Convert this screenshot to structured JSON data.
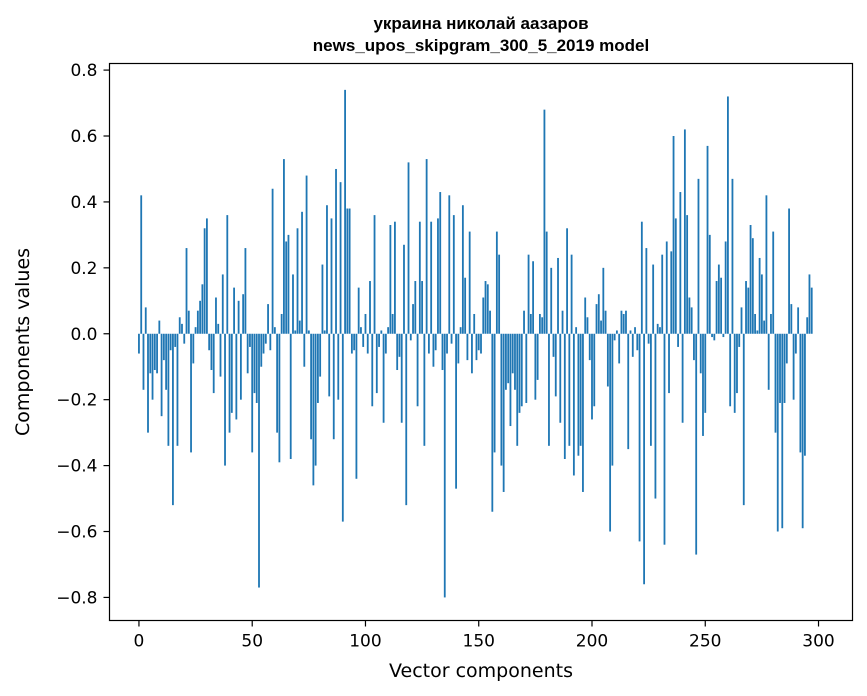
{
  "chart_data": {
    "type": "bar",
    "title_line1": "украина николай аазаров",
    "title_line2": "news_upos_skipgram_300_5_2019 model",
    "xlabel": "Vector components",
    "ylabel": "Components values",
    "xlim": [
      -13,
      315
    ],
    "ylim": [
      -0.87,
      0.82
    ],
    "xticks": [
      0,
      50,
      100,
      150,
      200,
      250,
      300
    ],
    "xtick_labels": [
      "0",
      "50",
      "100",
      "150",
      "200",
      "250",
      "300"
    ],
    "yticks": [
      -0.8,
      -0.6,
      -0.4,
      -0.2,
      0.0,
      0.2,
      0.4,
      0.6,
      0.8
    ],
    "ytick_labels": [
      "−0.8",
      "−0.6",
      "−0.4",
      "−0.2",
      "0.0",
      "0.2",
      "0.4",
      "0.6",
      "0.8"
    ],
    "bar_color": "#1f77b4",
    "values": [
      -0.06,
      0.42,
      -0.17,
      0.08,
      -0.3,
      -0.12,
      -0.2,
      -0.11,
      -0.12,
      0.04,
      -0.25,
      -0.08,
      -0.17,
      -0.34,
      -0.05,
      -0.52,
      -0.04,
      -0.34,
      0.05,
      0.03,
      -0.03,
      0.26,
      0.07,
      -0.36,
      -0.09,
      0.02,
      0.07,
      0.1,
      0.15,
      0.32,
      0.35,
      -0.05,
      -0.11,
      -0.18,
      0.11,
      0.03,
      -0.13,
      0.18,
      -0.4,
      0.36,
      -0.3,
      -0.24,
      0.14,
      -0.26,
      0.1,
      -0.2,
      0.12,
      0.26,
      -0.12,
      -0.04,
      -0.36,
      -0.18,
      -0.21,
      -0.77,
      -0.1,
      -0.06,
      -0.03,
      0.09,
      -0.05,
      0.44,
      0.02,
      -0.3,
      -0.39,
      0.06,
      0.53,
      0.28,
      0.3,
      -0.38,
      0.18,
      0.01,
      0.32,
      0.04,
      0.37,
      -0.1,
      0.48,
      0.01,
      -0.32,
      -0.46,
      -0.4,
      -0.21,
      -0.13,
      0.21,
      0.01,
      0.39,
      -0.19,
      0.35,
      -0.32,
      0.5,
      -0.2,
      0.46,
      -0.57,
      0.74,
      0.38,
      0.38,
      -0.06,
      -0.05,
      -0.44,
      0.14,
      0.02,
      -0.04,
      0.06,
      -0.06,
      0.16,
      -0.22,
      0.36,
      -0.18,
      -0.04,
      0.01,
      -0.27,
      -0.06,
      0.02,
      0.33,
      0.06,
      0.34,
      -0.11,
      -0.07,
      -0.27,
      0.27,
      -0.52,
      0.52,
      -0.02,
      0.09,
      0.16,
      -0.22,
      0.34,
      0.16,
      -0.34,
      0.53,
      -0.06,
      0.34,
      -0.1,
      -0.05,
      0.35,
      0.43,
      -0.11,
      -0.8,
      -0.06,
      0.42,
      -0.03,
      0.36,
      -0.47,
      -0.09,
      0.02,
      0.39,
      0.17,
      -0.08,
      0.31,
      -0.12,
      0.06,
      -0.08,
      -0.05,
      -0.06,
      0.11,
      0.16,
      0.15,
      0.07,
      -0.54,
      -0.36,
      0.31,
      0.24,
      -0.4,
      -0.48,
      -0.17,
      -0.15,
      -0.28,
      -0.12,
      -0.17,
      -0.34,
      -0.24,
      -0.22,
      0.07,
      -0.21,
      0.24,
      0.06,
      0.22,
      -0.2,
      -0.14,
      0.06,
      0.05,
      0.68,
      0.31,
      -0.34,
      0.2,
      -0.07,
      -0.19,
      0.23,
      -0.27,
      0.07,
      -0.38,
      0.32,
      -0.34,
      0.24,
      -0.43,
      0.02,
      -0.37,
      -0.34,
      -0.48,
      0.11,
      0.05,
      -0.08,
      -0.26,
      -0.22,
      0.09,
      0.12,
      0.04,
      0.2,
      0.07,
      -0.16,
      -0.6,
      -0.4,
      -0.02,
      0.01,
      -0.09,
      0.07,
      0.06,
      0.07,
      -0.35,
      0.01,
      -0.07,
      0.02,
      -0.05,
      -0.63,
      0.34,
      -0.76,
      0.26,
      -0.03,
      -0.34,
      0.21,
      -0.5,
      0.03,
      0.02,
      0.24,
      -0.64,
      0.28,
      -0.18,
      0.25,
      0.6,
      0.35,
      -0.04,
      0.43,
      -0.27,
      0.62,
      0.36,
      0.11,
      0.08,
      -0.08,
      -0.67,
      0.47,
      -0.12,
      -0.31,
      -0.24,
      0.57,
      0.3,
      -0.01,
      -0.02,
      0.16,
      0.21,
      0.17,
      -0.01,
      0.28,
      0.72,
      -0.22,
      0.47,
      -0.24,
      -0.18,
      -0.04,
      0.08,
      -0.52,
      0.16,
      0.14,
      0.33,
      0.29,
      0.06,
      0.01,
      0.23,
      0.18,
      0.04,
      0.42,
      -0.17,
      0.06,
      0.31,
      -0.3,
      -0.6,
      -0.21,
      -0.59,
      -0.21,
      -0.09,
      0.38,
      0.09,
      -0.2,
      -0.06,
      0.08,
      -0.36,
      -0.59,
      -0.37,
      0.05,
      0.18,
      0.14
    ]
  }
}
